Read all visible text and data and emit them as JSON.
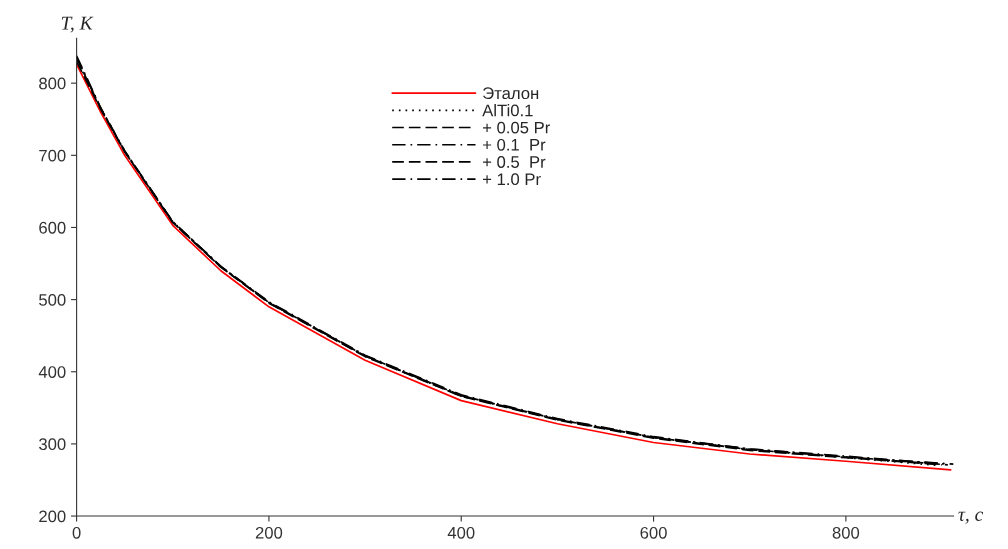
{
  "chart_data": {
    "type": "line",
    "xlabel": "τ, c",
    "ylabel": "T, K",
    "xlim": [
      0,
      912
    ],
    "ylim": [
      200,
      862
    ],
    "xticks": [
      0,
      200,
      400,
      600,
      800
    ],
    "yticks": [
      200,
      300,
      400,
      500,
      600,
      700,
      800
    ],
    "grid": false,
    "legend": "top",
    "marker": "none",
    "series": [
      {
        "name": "Эталон",
        "color": "#ff0000",
        "line_style": "solid",
        "x": [
          0,
          25,
          50,
          100,
          150,
          200,
          300,
          400,
          500,
          600,
          700,
          800,
          909
        ],
        "values": [
          826,
          760,
          700,
          603,
          540,
          490,
          416,
          360,
          328,
          302,
          286,
          276,
          264
        ]
      },
      {
        "name": "AlTi0.1",
        "color": "#000000",
        "line_style": "dotted",
        "x": [
          0,
          25,
          50,
          100,
          150,
          200,
          300,
          400,
          500,
          600,
          700,
          800,
          897
        ],
        "values": [
          832,
          766,
          706,
          608,
          546,
          496,
          422,
          366,
          334,
          309,
          292,
          281,
          270
        ]
      },
      {
        "name": "+ 0.05 Pr",
        "color": "#000000",
        "line_style": "dashed",
        "x": [
          0,
          25,
          50,
          100,
          150,
          200,
          300,
          400,
          500,
          600,
          700,
          800,
          900
        ],
        "values": [
          835,
          765,
          705,
          607,
          545,
          495,
          421,
          366,
          333,
          308,
          291,
          281,
          271
        ]
      },
      {
        "name": "+ 0.1  Pr",
        "color": "#000000",
        "line_style": "dashdot",
        "x": [
          0,
          25,
          50,
          100,
          150,
          200,
          300,
          400,
          500,
          600,
          700,
          800,
          903
        ],
        "values": [
          838,
          766,
          706,
          608,
          546,
          497,
          423,
          368,
          335,
          310,
          293,
          283,
          272
        ]
      },
      {
        "name": "+ 0.5  Pr",
        "color": "#000000",
        "line_style": "dashed",
        "x": [
          0,
          25,
          50,
          100,
          150,
          200,
          300,
          400,
          500,
          600,
          700,
          800,
          906
        ],
        "values": [
          830,
          764,
          705,
          607,
          545,
          496,
          422,
          367,
          334,
          309,
          292,
          282,
          271
        ]
      },
      {
        "name": "+ 1.0 Pr",
        "color": "#000000",
        "line_style": "dashdot",
        "x": [
          0,
          25,
          50,
          100,
          150,
          200,
          300,
          400,
          500,
          600,
          700,
          800,
          912
        ],
        "values": [
          836,
          765,
          706,
          608,
          546,
          496,
          422,
          367,
          334,
          309,
          293,
          282,
          272
        ]
      }
    ]
  }
}
